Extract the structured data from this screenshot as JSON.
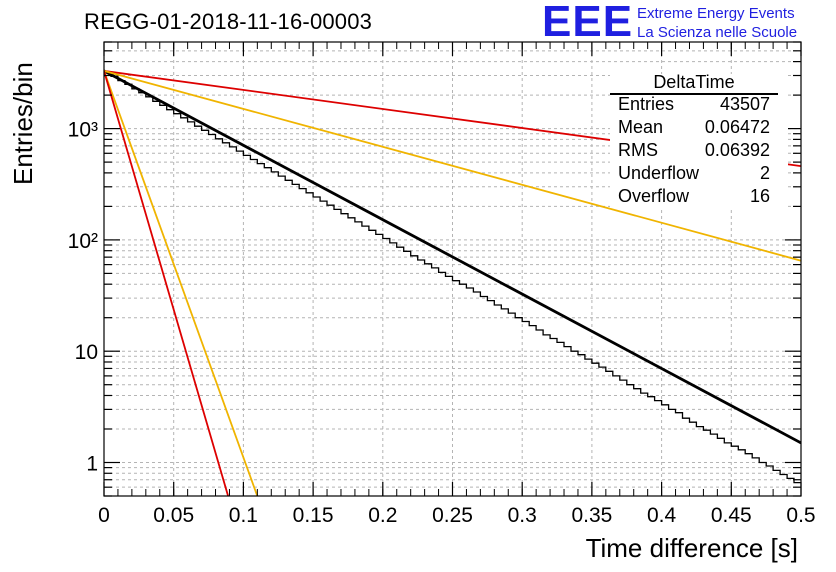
{
  "header": {
    "run_title": "REGG-01-2018-11-16-00003",
    "logo_text": "EEE",
    "logo_line1": "Extreme Energy Events",
    "logo_line2": "La Scienza nelle Scuole"
  },
  "stats": {
    "name": "DeltaTime",
    "rows": [
      {
        "label": "Entries",
        "value": "43507"
      },
      {
        "label": "Mean",
        "value": "0.06472"
      },
      {
        "label": "RMS",
        "value": "0.06392"
      },
      {
        "label": "Underflow",
        "value": "2"
      },
      {
        "label": "Overflow",
        "value": "16"
      }
    ]
  },
  "colors": {
    "histogram": "#000000",
    "fit": "#000000",
    "red_bound": "#dd0000",
    "yellow_bound": "#f0b400",
    "grid": "#b4b4b4"
  },
  "chart_data": {
    "type": "line",
    "xlabel": "Time difference [s]",
    "ylabel": "Entries/bin",
    "xlim": [
      0,
      0.5
    ],
    "ylim": [
      0.5,
      6000
    ],
    "yscale": "log",
    "grid": true,
    "legend": "top-right",
    "x_ticks": [
      {
        "value": 0,
        "label": "0"
      },
      {
        "value": 0.05,
        "label": "0.05"
      },
      {
        "value": 0.1,
        "label": "0.1"
      },
      {
        "value": 0.15,
        "label": "0.15"
      },
      {
        "value": 0.2,
        "label": "0.2"
      },
      {
        "value": 0.25,
        "label": "0.25"
      },
      {
        "value": 0.3,
        "label": "0.3"
      },
      {
        "value": 0.35,
        "label": "0.35"
      },
      {
        "value": 0.4,
        "label": "0.4"
      },
      {
        "value": 0.45,
        "label": "0.45"
      },
      {
        "value": 0.5,
        "label": "0.5"
      }
    ],
    "y_ticks": [
      {
        "value": 1,
        "label": "1"
      },
      {
        "value": 10,
        "label": "10"
      },
      {
        "value": 100,
        "label": "10²"
      },
      {
        "value": 1000,
        "label": "10³"
      }
    ],
    "histogram": {
      "bin_width": 0.005,
      "values": [
        3200,
        2950,
        2700,
        2500,
        2280,
        2100,
        1930,
        1760,
        1620,
        1480,
        1360,
        1250,
        1150,
        1050,
        965,
        885,
        810,
        745,
        685,
        628,
        575,
        528,
        485,
        445,
        408,
        374,
        343,
        315,
        289,
        265,
        243,
        223,
        205,
        188,
        172,
        158,
        145,
        133,
        122,
        112,
        103,
        94,
        86,
        79,
        72,
        66,
        61,
        56,
        51,
        47,
        43,
        40,
        37,
        34,
        31,
        28.5,
        26,
        24,
        22,
        20,
        18.5,
        17,
        15.5,
        14,
        13,
        12,
        11,
        10,
        9.3,
        8.5,
        7.8,
        7.2,
        6.6,
        6,
        5.5,
        5,
        4.6,
        4.2,
        3.9,
        3.6,
        3.3,
        3.0,
        2.8,
        2.5,
        2.3,
        2.1,
        1.95,
        1.8,
        1.65,
        1.5,
        1.4,
        1.3,
        1.2,
        1.1,
        1.0,
        0.93,
        0.85,
        0.78,
        0.72,
        0.66
      ]
    },
    "series": [
      {
        "role": "fit",
        "color": "#000000",
        "x": [
          0,
          0.5
        ],
        "y": [
          3300,
          1.5
        ]
      },
      {
        "role": "red_slow",
        "color": "#dd0000",
        "x": [
          0,
          0.5
        ],
        "y": [
          3300,
          460
        ]
      },
      {
        "role": "yellow_slow",
        "color": "#f0b400",
        "x": [
          0,
          0.5
        ],
        "y": [
          3300,
          65
        ]
      },
      {
        "role": "yellow_fast",
        "color": "#f0b400",
        "x": [
          0,
          0.11
        ],
        "y": [
          3300,
          0.5
        ]
      },
      {
        "role": "red_fast",
        "color": "#dd0000",
        "x": [
          0,
          0.089
        ],
        "y": [
          3300,
          0.5
        ]
      }
    ]
  }
}
